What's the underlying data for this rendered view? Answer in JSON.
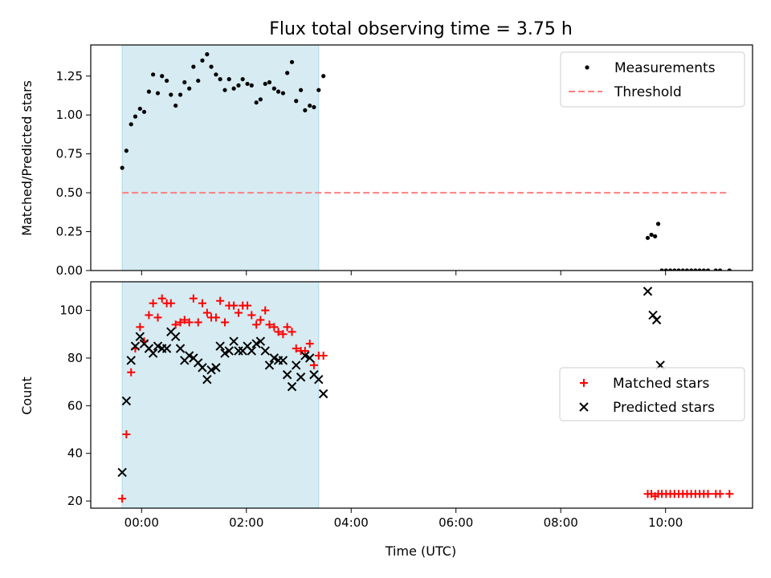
{
  "figure": {
    "title": "Flux total observing time = 3.75 h",
    "xlabel": "Time (UTC)"
  },
  "colors": {
    "observing_span": "#add8e6",
    "measurements": "#000000",
    "threshold": "#ff7f7f",
    "matched": "#ff0000",
    "predicted": "#000000"
  },
  "chart_data": [
    {
      "type": "scatter",
      "ylabel": "Matched/Predicted stars",
      "xlim_hours": [
        -0.97,
        11.66
      ],
      "ylim": [
        0,
        1.45
      ],
      "yticks": [
        0.0,
        0.25,
        0.5,
        0.75,
        1.0,
        1.25
      ],
      "ytick_labels": [
        "0.00",
        "0.25",
        "0.50",
        "0.75",
        "1.00",
        "1.25"
      ],
      "legend_position": "top-right",
      "observing_span_hours": [
        -0.37,
        3.38
      ],
      "threshold": {
        "name": "Threshold",
        "value": 0.5,
        "x_hours": [
          -0.37,
          11.22
        ]
      },
      "series": [
        {
          "name": "Measurements",
          "marker": "dot",
          "points": [
            [
              -0.37,
              0.66
            ],
            [
              -0.29,
              0.77
            ],
            [
              -0.2,
              0.94
            ],
            [
              -0.12,
              0.99
            ],
            [
              -0.03,
              1.04
            ],
            [
              0.05,
              1.02
            ],
            [
              0.14,
              1.15
            ],
            [
              0.22,
              1.26
            ],
            [
              0.31,
              1.14
            ],
            [
              0.39,
              1.25
            ],
            [
              0.48,
              1.22
            ],
            [
              0.56,
              1.13
            ],
            [
              0.65,
              1.06
            ],
            [
              0.74,
              1.13
            ],
            [
              0.82,
              1.21
            ],
            [
              0.91,
              1.17
            ],
            [
              0.99,
              1.31
            ],
            [
              1.08,
              1.22
            ],
            [
              1.16,
              1.35
            ],
            [
              1.25,
              1.39
            ],
            [
              1.33,
              1.31
            ],
            [
              1.42,
              1.26
            ],
            [
              1.5,
              1.23
            ],
            [
              1.59,
              1.16
            ],
            [
              1.67,
              1.23
            ],
            [
              1.76,
              1.17
            ],
            [
              1.85,
              1.19
            ],
            [
              1.93,
              1.23
            ],
            [
              2.02,
              1.2
            ],
            [
              2.1,
              1.19
            ],
            [
              2.19,
              1.08
            ],
            [
              2.27,
              1.1
            ],
            [
              2.36,
              1.2
            ],
            [
              2.44,
              1.21
            ],
            [
              2.53,
              1.17
            ],
            [
              2.61,
              1.15
            ],
            [
              2.7,
              1.14
            ],
            [
              2.78,
              1.27
            ],
            [
              2.87,
              1.34
            ],
            [
              2.95,
              1.09
            ],
            [
              3.04,
              1.16
            ],
            [
              3.12,
              1.03
            ],
            [
              3.21,
              1.06
            ],
            [
              3.29,
              1.05
            ],
            [
              3.38,
              1.16
            ],
            [
              3.47,
              1.25
            ],
            [
              9.66,
              0.21
            ],
            [
              9.73,
              0.23
            ],
            [
              9.8,
              0.22
            ],
            [
              9.86,
              0.3
            ],
            [
              9.93,
              0.0
            ],
            [
              10.01,
              0.0
            ],
            [
              10.09,
              0.0
            ],
            [
              10.17,
              0.0
            ],
            [
              10.25,
              0.0
            ],
            [
              10.33,
              0.0
            ],
            [
              10.41,
              0.0
            ],
            [
              10.49,
              0.0
            ],
            [
              10.57,
              0.0
            ],
            [
              10.65,
              0.0
            ],
            [
              10.73,
              0.0
            ],
            [
              10.81,
              0.0
            ],
            [
              10.96,
              0.0
            ],
            [
              11.04,
              0.0
            ],
            [
              11.22,
              0.0
            ]
          ]
        }
      ]
    },
    {
      "type": "scatter",
      "ylabel": "Count",
      "xlim_hours": [
        -0.97,
        11.66
      ],
      "ylim": [
        17,
        112
      ],
      "yticks": [
        20,
        40,
        60,
        80,
        100
      ],
      "ytick_labels": [
        "20",
        "40",
        "60",
        "80",
        "100"
      ],
      "xticks_hours": [
        0,
        2,
        4,
        6,
        8,
        10
      ],
      "xtick_labels": [
        "00:00",
        "02:00",
        "04:00",
        "06:00",
        "08:00",
        "10:00"
      ],
      "legend_position": "center-right",
      "observing_span_hours": [
        -0.37,
        3.38
      ],
      "series": [
        {
          "name": "Matched stars",
          "marker": "plus",
          "points": [
            [
              -0.37,
              21
            ],
            [
              -0.29,
              48
            ],
            [
              -0.2,
              74
            ],
            [
              -0.12,
              84
            ],
            [
              -0.03,
              93
            ],
            [
              0.05,
              87
            ],
            [
              0.14,
              98
            ],
            [
              0.22,
              103
            ],
            [
              0.31,
              97
            ],
            [
              0.39,
              105
            ],
            [
              0.48,
              103
            ],
            [
              0.56,
              103
            ],
            [
              0.65,
              94
            ],
            [
              0.74,
              95
            ],
            [
              0.82,
              96
            ],
            [
              0.91,
              95
            ],
            [
              0.99,
              105
            ],
            [
              1.08,
              95
            ],
            [
              1.16,
              103
            ],
            [
              1.25,
              99
            ],
            [
              1.33,
              97
            ],
            [
              1.42,
              97
            ],
            [
              1.5,
              104
            ],
            [
              1.59,
              95
            ],
            [
              1.67,
              102
            ],
            [
              1.76,
              102
            ],
            [
              1.85,
              99
            ],
            [
              1.93,
              102
            ],
            [
              2.02,
              102
            ],
            [
              2.1,
              98
            ],
            [
              2.19,
              94
            ],
            [
              2.27,
              96
            ],
            [
              2.36,
              100
            ],
            [
              2.44,
              94
            ],
            [
              2.53,
              93
            ],
            [
              2.61,
              91
            ],
            [
              2.7,
              90
            ],
            [
              2.78,
              93
            ],
            [
              2.87,
              91
            ],
            [
              2.95,
              84
            ],
            [
              3.04,
              83
            ],
            [
              3.12,
              83
            ],
            [
              3.21,
              86
            ],
            [
              3.29,
              77
            ],
            [
              3.38,
              81
            ],
            [
              3.47,
              81
            ],
            [
              9.66,
              23
            ],
            [
              9.73,
              23
            ],
            [
              9.8,
              22
            ],
            [
              9.86,
              23
            ],
            [
              9.93,
              23
            ],
            [
              10.01,
              23
            ],
            [
              10.09,
              23
            ],
            [
              10.17,
              23
            ],
            [
              10.25,
              23
            ],
            [
              10.33,
              23
            ],
            [
              10.41,
              23
            ],
            [
              10.49,
              23
            ],
            [
              10.57,
              23
            ],
            [
              10.65,
              23
            ],
            [
              10.73,
              23
            ],
            [
              10.81,
              23
            ],
            [
              10.96,
              23
            ],
            [
              11.04,
              23
            ],
            [
              11.22,
              23
            ]
          ]
        },
        {
          "name": "Predicted stars",
          "marker": "x",
          "points": [
            [
              -0.37,
              32
            ],
            [
              -0.29,
              62
            ],
            [
              -0.2,
              79
            ],
            [
              -0.12,
              85
            ],
            [
              -0.03,
              89
            ],
            [
              0.05,
              86
            ],
            [
              0.14,
              84
            ],
            [
              0.22,
              82
            ],
            [
              0.31,
              85
            ],
            [
              0.39,
              84
            ],
            [
              0.48,
              84
            ],
            [
              0.56,
              91
            ],
            [
              0.65,
              89
            ],
            [
              0.74,
              84
            ],
            [
              0.82,
              79
            ],
            [
              0.91,
              81
            ],
            [
              0.99,
              80
            ],
            [
              1.08,
              78
            ],
            [
              1.16,
              76
            ],
            [
              1.25,
              71
            ],
            [
              1.33,
              75
            ],
            [
              1.42,
              76
            ],
            [
              1.5,
              85
            ],
            [
              1.59,
              82
            ],
            [
              1.67,
              83
            ],
            [
              1.76,
              87
            ],
            [
              1.85,
              83
            ],
            [
              1.93,
              83
            ],
            [
              2.02,
              85
            ],
            [
              2.1,
              83
            ],
            [
              2.19,
              86
            ],
            [
              2.27,
              87
            ],
            [
              2.36,
              83
            ],
            [
              2.44,
              77
            ],
            [
              2.53,
              80
            ],
            [
              2.61,
              79
            ],
            [
              2.7,
              79
            ],
            [
              2.78,
              73
            ],
            [
              2.87,
              68
            ],
            [
              2.95,
              77
            ],
            [
              3.04,
              72
            ],
            [
              3.12,
              81
            ],
            [
              3.21,
              80
            ],
            [
              3.29,
              73
            ],
            [
              3.38,
              71
            ],
            [
              3.47,
              65
            ],
            [
              9.66,
              108
            ],
            [
              9.76,
              98
            ],
            [
              9.83,
              96
            ],
            [
              9.9,
              77
            ]
          ]
        }
      ]
    }
  ]
}
